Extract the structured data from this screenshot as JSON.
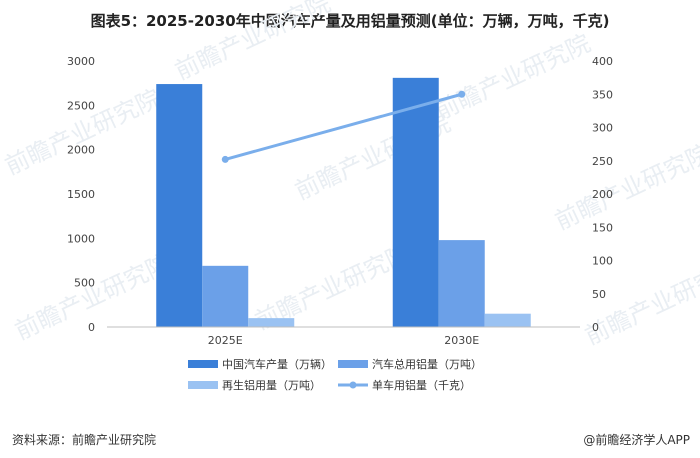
{
  "title": "图表5：2025-2030年中国汽车产量及用铝量预测(单位：万辆，万吨，千克)",
  "source": "资料来源：前瞻产业研究院",
  "credit": "@前瞻经济学人APP",
  "watermark": "前瞻产业研究院",
  "colors": {
    "production": "#3A7FD8",
    "total_al": "#6BA0E8",
    "recycled_al": "#9AC2F2",
    "per_car": "#7AAEEB"
  },
  "chart_data": {
    "type": "bar",
    "categories": [
      "2025E",
      "2030E"
    ],
    "ylim": [
      0,
      3000
    ],
    "y2lim": [
      0,
      400
    ],
    "yticks": [
      "0",
      "500",
      "1000",
      "1500",
      "2000",
      "2500",
      "3000"
    ],
    "y2ticks": [
      "0",
      "50",
      "100",
      "150",
      "200",
      "250",
      "300",
      "350",
      "400"
    ],
    "series": [
      {
        "name": "中国汽车产量（万辆）",
        "values": [
          2740,
          2810
        ],
        "axis": "left",
        "type": "bar",
        "color": "#3A7FD8"
      },
      {
        "name": "汽车总用铝量（万吨）",
        "values": [
          690,
          980
        ],
        "axis": "left",
        "type": "bar",
        "color": "#6BA0E8"
      },
      {
        "name": "再生铝用量（万吨）",
        "values": [
          100,
          150
        ],
        "axis": "left",
        "type": "bar",
        "color": "#9AC2F2"
      },
      {
        "name": "单车用铝量（千克）",
        "values": [
          252,
          350
        ],
        "axis": "right",
        "type": "line",
        "color": "#7AAEEB"
      }
    ],
    "legend_position": "bottom"
  }
}
